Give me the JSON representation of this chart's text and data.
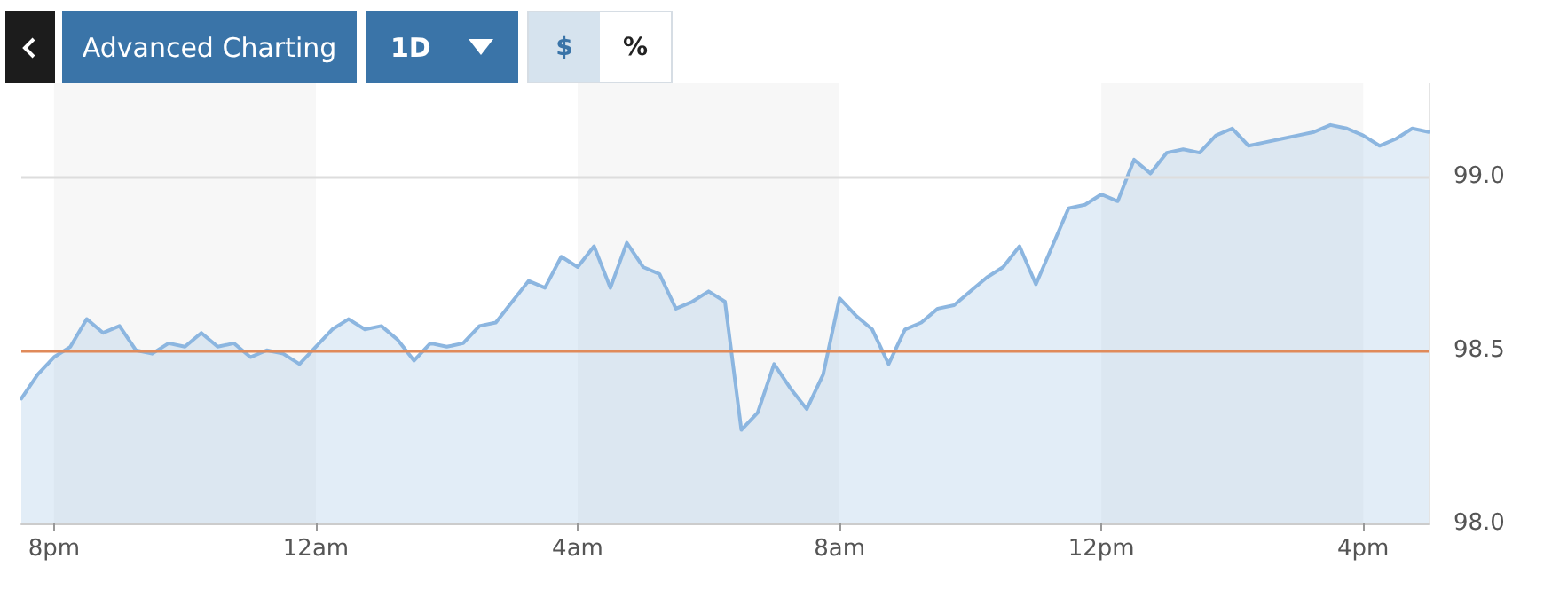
{
  "chart_data": {
    "type": "area",
    "categories": [
      null,
      null,
      "8pm",
      null,
      null,
      null,
      null,
      null,
      null,
      null,
      null,
      null,
      null,
      null,
      null,
      null,
      null,
      null,
      "12am",
      null,
      null,
      null,
      null,
      null,
      null,
      null,
      null,
      null,
      null,
      null,
      null,
      null,
      null,
      null,
      "4am",
      null,
      null,
      null,
      null,
      null,
      null,
      null,
      null,
      null,
      null,
      null,
      null,
      null,
      null,
      null,
      "8am",
      null,
      null,
      null,
      null,
      null,
      null,
      null,
      null,
      null,
      null,
      null,
      null,
      null,
      null,
      null,
      "12pm",
      null,
      null,
      null,
      null,
      null,
      null,
      null,
      null,
      null,
      null,
      null,
      null,
      null,
      null,
      null,
      "4pm",
      null,
      null,
      null,
      null
    ],
    "series": [
      {
        "color": "#8cb6e0",
        "values": [
          98.36,
          98.43,
          98.48,
          98.51,
          98.59,
          98.55,
          98.57,
          98.5,
          98.49,
          98.52,
          98.51,
          98.55,
          98.51,
          98.52,
          98.48,
          98.5,
          98.49,
          98.46,
          98.51,
          98.56,
          98.59,
          98.56,
          98.57,
          98.53,
          98.47,
          98.52,
          98.51,
          98.52,
          98.57,
          98.58,
          98.64,
          98.7,
          98.68,
          98.77,
          98.74,
          98.8,
          98.68,
          98.81,
          98.74,
          98.72,
          98.62,
          98.64,
          98.67,
          98.64,
          98.27,
          98.32,
          98.46,
          98.39,
          98.33,
          98.43,
          98.65,
          98.6,
          98.56,
          98.46,
          98.56,
          98.58,
          98.62,
          98.63,
          98.67,
          98.71,
          98.74,
          98.8,
          98.69,
          98.8,
          98.91,
          98.92,
          98.95,
          98.93,
          99.05,
          99.01,
          99.07,
          99.08,
          99.07,
          99.12,
          99.14,
          99.09,
          99.1,
          99.11,
          99.12,
          99.13,
          99.15,
          99.14,
          99.12,
          99.09,
          99.11,
          99.14,
          99.13
        ]
      }
    ],
    "ylim": [
      98.0,
      99.27
    ],
    "yticks": [
      {
        "value": 98,
        "label": "98.0"
      },
      {
        "value": 98.5,
        "label": "98.5"
      },
      {
        "value": 99,
        "label": "99.0"
      }
    ],
    "ref_lines": [
      {
        "axis": "y",
        "value": 99,
        "color": "#dddddd"
      },
      {
        "axis": "y",
        "value": 98.5,
        "color": "#e08a5a"
      }
    ],
    "bands": [
      {
        "axis": "x",
        "from": "8pm",
        "to": "12am",
        "color": "#f7f7f7"
      },
      {
        "axis": "x",
        "from": "4am",
        "to": "8am",
        "color": "#f7f7f7"
      },
      {
        "axis": "x",
        "from": "12pm",
        "to": "4pm",
        "color": "#f7f7f7"
      }
    ],
    "annotations": [
      "Advanced Charting",
      "1D",
      "$",
      "%"
    ]
  }
}
